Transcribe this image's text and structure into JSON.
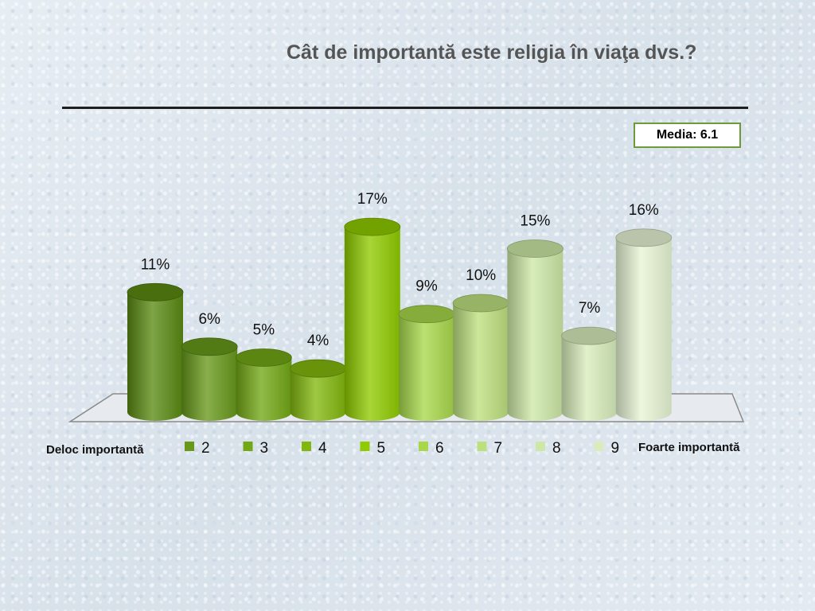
{
  "slide": {
    "title": "Cât de importantă este religia în viaţa dvs.?",
    "media_label": "Media: 6.1"
  },
  "chart_data": {
    "type": "bar",
    "style": "3d-cylinder",
    "categories": [
      "Deloc importantă",
      "2",
      "3",
      "4",
      "5",
      "6",
      "7",
      "8",
      "9",
      "Foarte importantă"
    ],
    "values": [
      11,
      6,
      5,
      4,
      17,
      9,
      10,
      15,
      7,
      16
    ],
    "value_labels": [
      "11%",
      "6%",
      "5%",
      "4%",
      "17%",
      "9%",
      "10%",
      "15%",
      "7%",
      "16%"
    ],
    "unit": "%",
    "legend": {
      "placement": "bottom",
      "start_label": "Deloc importantă",
      "end_label": "Foarte importantă",
      "items": [
        "2",
        "3",
        "4",
        "5",
        "6",
        "7",
        "8",
        "9"
      ]
    },
    "colors": [
      "#5a8a12",
      "#67981a",
      "#72a815",
      "#82b80e",
      "#8fcb00",
      "#a8d84a",
      "#bde07e",
      "#cde8a6",
      "#d8edbb",
      "#e8f5d4"
    ],
    "grid": false,
    "ylim": [
      0,
      18
    ]
  }
}
